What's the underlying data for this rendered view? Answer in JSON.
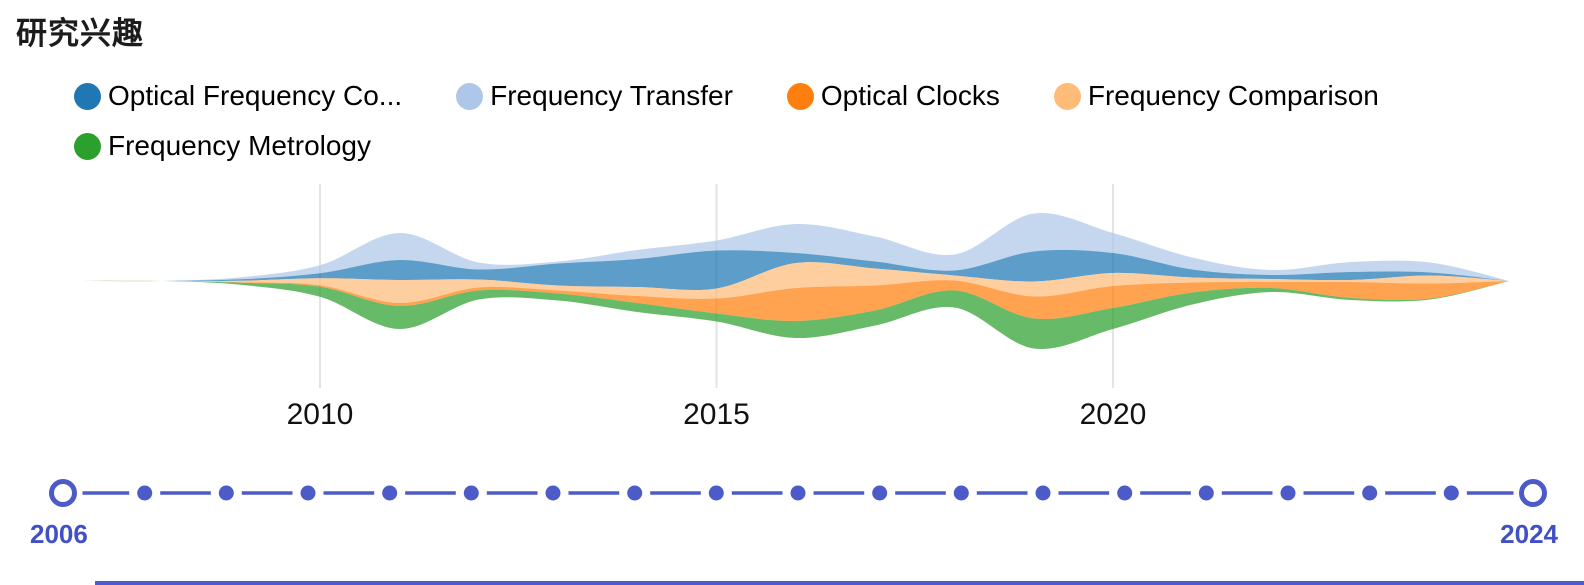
{
  "header": {
    "title": "研究兴趣"
  },
  "chart_data": {
    "type": "area",
    "variant": "streamgraph-themeriver",
    "legend_position": "top",
    "x": [
      2006,
      2007,
      2008,
      2009,
      2010,
      2011,
      2012,
      2013,
      2014,
      2015,
      2016,
      2017,
      2018,
      2019,
      2020,
      2021,
      2022,
      2023,
      2024
    ],
    "x_range": [
      2006,
      2025
    ],
    "x_tick_years": [
      2010,
      2015,
      2020
    ],
    "x_tick_labels": [
      "2010",
      "2015",
      "2020"
    ],
    "stack_order_top_to_bottom": [
      1,
      0,
      3,
      2,
      4
    ],
    "series": [
      {
        "name": "Optical Frequency Co...",
        "color": "#1F77B4",
        "values": [
          0,
          0,
          0,
          1.5,
          5,
          20,
          10,
          22,
          28,
          38,
          10,
          7,
          5,
          30,
          20,
          8,
          4,
          8,
          3
        ]
      },
      {
        "name": "Frequency Transfer",
        "color": "#AEC7E8",
        "values": [
          0,
          0,
          0,
          2,
          8,
          27,
          7,
          2,
          9,
          10,
          29,
          25,
          16,
          38,
          20,
          12,
          5,
          10,
          10
        ]
      },
      {
        "name": "Optical Clocks",
        "color": "#FF7F0E",
        "values": [
          0,
          0,
          0,
          0.5,
          1.5,
          3,
          3,
          3,
          7,
          15,
          33,
          25,
          10,
          22,
          22,
          10,
          6,
          16,
          15
        ]
      },
      {
        "name": "Frequency Comparison",
        "color": "#FFBB78",
        "values": [
          0,
          0,
          0,
          1.5,
          7,
          23,
          8,
          5,
          9,
          10,
          25,
          17,
          5,
          15,
          13,
          5,
          3,
          2,
          8
        ]
      },
      {
        "name": "Frequency Metrology",
        "color": "#2CA02C",
        "values": [
          0,
          0,
          0,
          2,
          10,
          23,
          9,
          7,
          9,
          8,
          17,
          15,
          17,
          30,
          21,
          12,
          4,
          2,
          1
        ]
      }
    ]
  },
  "timeline": {
    "start_label": "2006",
    "end_label": "2024",
    "years": [
      2006,
      2007,
      2008,
      2009,
      2010,
      2011,
      2012,
      2013,
      2014,
      2015,
      2016,
      2017,
      2018,
      2019,
      2020,
      2021,
      2022,
      2023,
      2024
    ]
  },
  "colors": {
    "grid": "#E3E3E3",
    "axis_label": "#111111",
    "timeline": "#4D5BC8",
    "timeline_label": "#4150C4",
    "bottom_bar": "#4C5CCE"
  }
}
